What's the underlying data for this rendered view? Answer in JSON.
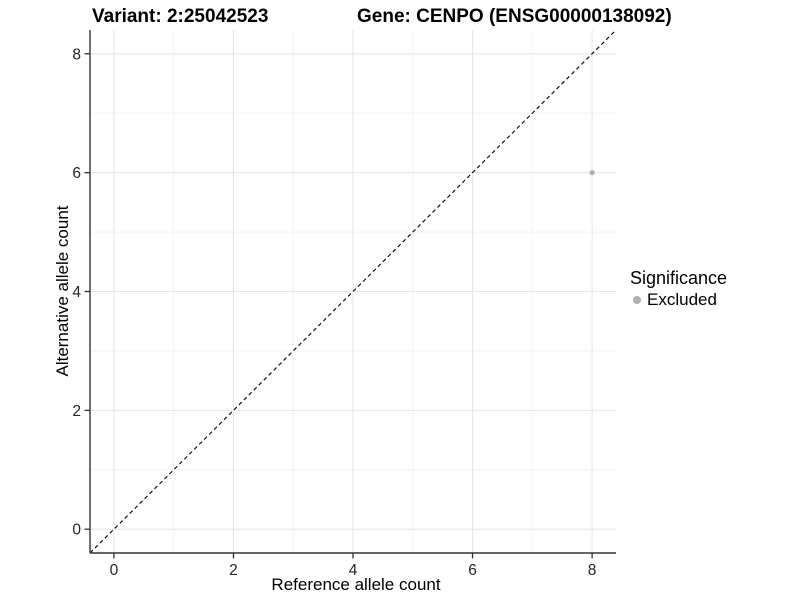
{
  "chart_data": {
    "type": "scatter",
    "titles": {
      "variant": "Variant: 2:25042523",
      "gene": "Gene: CENPO (ENSG00000138092)"
    },
    "xlabel": "Reference allele count",
    "ylabel": "Alternative allele count",
    "xlim": [
      -0.4,
      8.4
    ],
    "ylim": [
      -0.4,
      8.4
    ],
    "xticks": [
      0,
      2,
      4,
      6,
      8
    ],
    "yticks": [
      0,
      2,
      4,
      6,
      8
    ],
    "x_minor_ticks": [
      1,
      3,
      5,
      7
    ],
    "y_minor_ticks": [
      1,
      3,
      5,
      7
    ],
    "grid": true,
    "series": [
      {
        "name": "Excluded",
        "marker": "circle",
        "color": "#b0b0b0",
        "points": [
          [
            8,
            6
          ]
        ]
      }
    ],
    "reference_line": {
      "kind": "identity",
      "slope": 1,
      "intercept": 0,
      "style": "dashed",
      "color": "#000000"
    },
    "legend": {
      "title": "Significance",
      "position": "right",
      "entries": [
        {
          "label": "Excluded",
          "color": "#b0b0b0"
        }
      ]
    },
    "colors": {
      "background": "#ffffff",
      "grid_major": "#e6e6e6",
      "grid_minor": "#f2f2f2",
      "axis": "#333333",
      "tick_text": "#262626"
    }
  }
}
